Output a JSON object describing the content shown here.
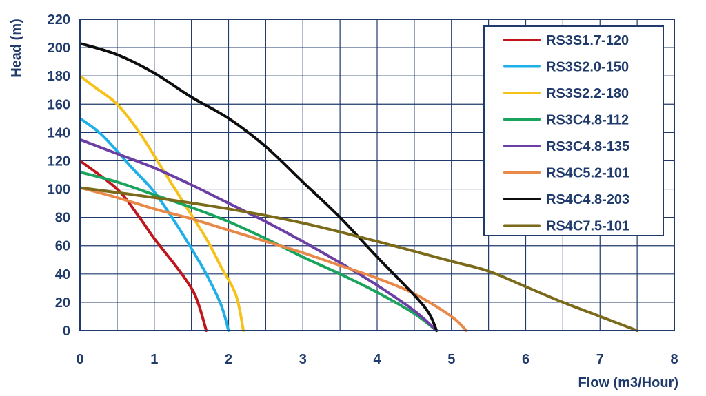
{
  "colors": {
    "axis_text": "#1f3a6b",
    "grid": "#1f3a6b",
    "frame": "#1f3a6b"
  },
  "chart_data": {
    "type": "line",
    "title": "",
    "xlabel": "Flow (m3/Hour)",
    "ylabel": "Head (m)",
    "xlim": [
      0,
      8
    ],
    "ylim": [
      0,
      220
    ],
    "x_ticks": [
      "0",
      "1",
      "2",
      "3",
      "4",
      "5",
      "6",
      "7",
      "8"
    ],
    "y_ticks": [
      "0",
      "20",
      "40",
      "60",
      "80",
      "100",
      "120",
      "140",
      "160",
      "180",
      "200",
      "220"
    ],
    "grid": true,
    "legend_position": "top-right",
    "series": [
      {
        "name": "RS3S1.7-120",
        "color": "#c0161b",
        "points": [
          [
            0,
            120
          ],
          [
            0.5,
            100
          ],
          [
            0.8,
            80
          ],
          [
            1.0,
            65
          ],
          [
            1.3,
            45
          ],
          [
            1.5,
            30
          ],
          [
            1.6,
            18
          ],
          [
            1.7,
            0
          ]
        ]
      },
      {
        "name": "RS3S2.0-150",
        "color": "#1fb0e8",
        "points": [
          [
            0,
            150
          ],
          [
            0.3,
            138
          ],
          [
            0.7,
            115
          ],
          [
            1.0,
            98
          ],
          [
            1.3,
            75
          ],
          [
            1.5,
            58
          ],
          [
            1.7,
            40
          ],
          [
            1.9,
            18
          ],
          [
            2.0,
            0
          ]
        ]
      },
      {
        "name": "RS3S2.2-180",
        "color": "#f6c21a",
        "points": [
          [
            0,
            180
          ],
          [
            0.2,
            172
          ],
          [
            0.5,
            160
          ],
          [
            0.8,
            140
          ],
          [
            1.1,
            115
          ],
          [
            1.4,
            90
          ],
          [
            1.7,
            65
          ],
          [
            1.9,
            45
          ],
          [
            2.1,
            25
          ],
          [
            2.2,
            0
          ]
        ]
      },
      {
        "name": "RS3C4.8-112",
        "color": "#1aa35c",
        "points": [
          [
            0,
            112
          ],
          [
            0.5,
            105
          ],
          [
            1.0,
            96
          ],
          [
            1.5,
            87
          ],
          [
            2.0,
            77
          ],
          [
            2.5,
            65
          ],
          [
            3.0,
            52
          ],
          [
            3.5,
            40
          ],
          [
            4.0,
            27
          ],
          [
            4.5,
            12
          ],
          [
            4.8,
            0
          ]
        ]
      },
      {
        "name": "RS3C4.8-135",
        "color": "#6b3fa3",
        "points": [
          [
            0,
            135
          ],
          [
            0.5,
            125
          ],
          [
            1.0,
            115
          ],
          [
            1.5,
            103
          ],
          [
            2.0,
            90
          ],
          [
            2.5,
            77
          ],
          [
            3.0,
            63
          ],
          [
            3.5,
            48
          ],
          [
            4.0,
            32
          ],
          [
            4.5,
            14
          ],
          [
            4.8,
            0
          ]
        ]
      },
      {
        "name": "RS4C5.2-101",
        "color": "#e8894a",
        "points": [
          [
            0,
            101
          ],
          [
            0.5,
            94
          ],
          [
            1.0,
            86
          ],
          [
            1.5,
            79
          ],
          [
            2.0,
            71
          ],
          [
            2.5,
            63
          ],
          [
            3.0,
            55
          ],
          [
            3.5,
            46
          ],
          [
            4.0,
            37
          ],
          [
            4.5,
            26
          ],
          [
            5.0,
            10
          ],
          [
            5.2,
            0
          ]
        ]
      },
      {
        "name": "RS4C4.8-203",
        "color": "#0d0d0d",
        "points": [
          [
            0,
            203
          ],
          [
            0.5,
            195
          ],
          [
            1.0,
            182
          ],
          [
            1.5,
            165
          ],
          [
            2.0,
            150
          ],
          [
            2.5,
            130
          ],
          [
            3.0,
            105
          ],
          [
            3.5,
            80
          ],
          [
            4.0,
            52
          ],
          [
            4.5,
            25
          ],
          [
            4.7,
            12
          ],
          [
            4.8,
            0
          ]
        ]
      },
      {
        "name": "RS4C7.5-101",
        "color": "#7a6a1a",
        "points": [
          [
            0,
            101
          ],
          [
            1.0,
            94
          ],
          [
            2.0,
            86
          ],
          [
            3.0,
            76
          ],
          [
            4.0,
            63
          ],
          [
            5.0,
            49
          ],
          [
            5.5,
            42
          ],
          [
            6.0,
            31
          ],
          [
            6.5,
            20
          ],
          [
            7.0,
            10
          ],
          [
            7.5,
            0
          ]
        ]
      }
    ]
  }
}
